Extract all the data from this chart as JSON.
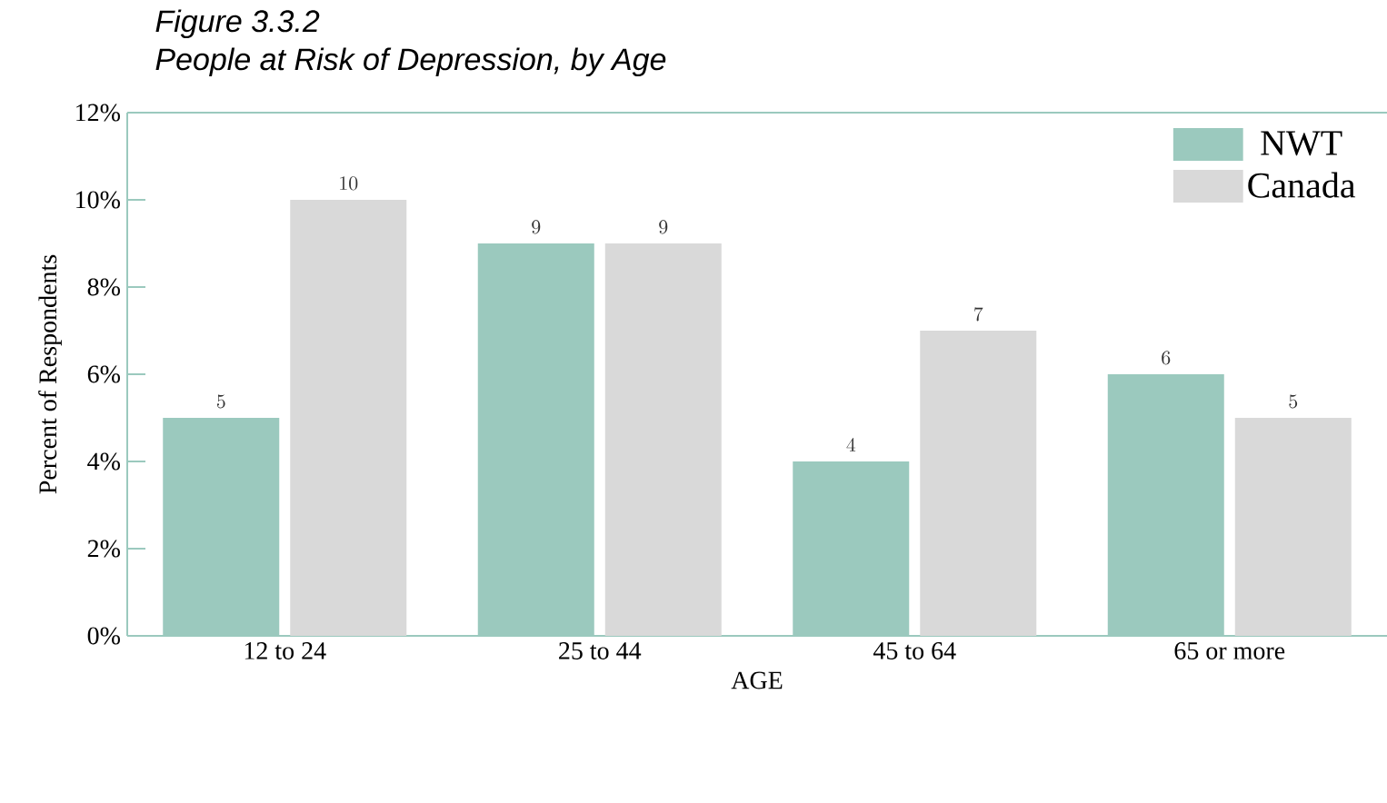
{
  "chart_data": {
    "type": "bar",
    "title": "Figure 3.3.2",
    "subtitle": "People at Risk of Depression, by Age",
    "xlabel": "AGE",
    "ylabel": "Percent of Respondents",
    "categories": [
      "12 to 24",
      "25 to 44",
      "45 to 64",
      "65 or more"
    ],
    "series": [
      {
        "name": "NWT",
        "color": "#9bc9be",
        "values": [
          5,
          9,
          4,
          6
        ]
      },
      {
        "name": "Canada",
        "color": "#d9d9d9",
        "values": [
          10,
          9,
          7,
          5
        ]
      }
    ],
    "ylim": [
      0,
      12
    ],
    "yticks": [
      {
        "value": 0,
        "label": "0%"
      },
      {
        "value": 2,
        "label": "2%"
      },
      {
        "value": 4,
        "label": "4%"
      },
      {
        "value": 6,
        "label": "6%"
      },
      {
        "value": 8,
        "label": "8%"
      },
      {
        "value": 10,
        "label": "10%"
      },
      {
        "value": 12,
        "label": "12%"
      }
    ],
    "data_labels": true,
    "legend": "top right",
    "grid": false
  }
}
